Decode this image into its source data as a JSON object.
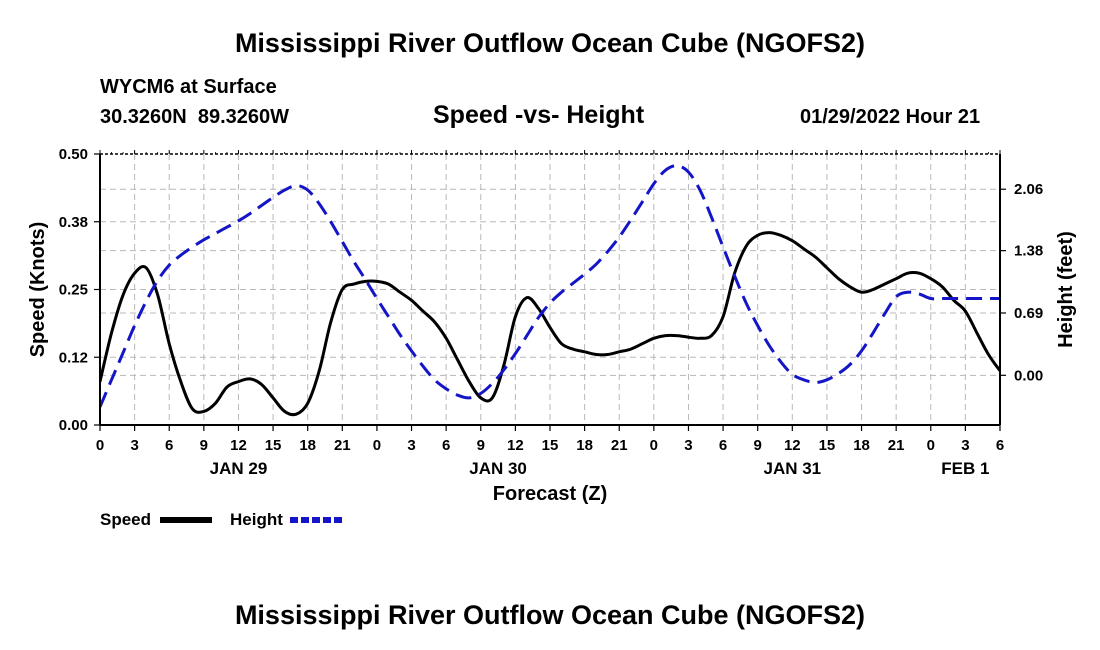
{
  "page": {
    "title": "Mississippi River Outflow Ocean Cube (NGOFS2)",
    "station_line": "WYCM6 at Surface",
    "coords_line": "30.3260N  89.3260W",
    "subtitle": "Speed -vs- Height",
    "datetime": "01/29/2022 Hour 21",
    "footer_title": "Mississippi River Outflow Ocean Cube (NGOFS2)"
  },
  "chart_data": {
    "type": "line",
    "title": "Speed -vs- Height",
    "xlabel": "Forecast (Z)",
    "ylabel": "Speed (Knots)",
    "y2label": "Height (feet)",
    "x_range": [
      0,
      78
    ],
    "ylim": [
      0,
      0.5
    ],
    "y2lim": [
      -0.55,
      2.45
    ],
    "grid": true,
    "x_tick_hours": [
      0,
      3,
      6,
      9,
      12,
      15,
      18,
      21,
      24,
      27,
      30,
      33,
      36,
      39,
      42,
      45,
      48,
      51,
      54,
      57,
      60,
      63,
      66,
      69,
      72,
      75,
      78
    ],
    "x_tick_labels": [
      "0",
      "3",
      "6",
      "9",
      "12",
      "15",
      "18",
      "21",
      "0",
      "3",
      "6",
      "9",
      "12",
      "15",
      "18",
      "21",
      "0",
      "3",
      "6",
      "9",
      "12",
      "15",
      "18",
      "21",
      "0",
      "3",
      "6"
    ],
    "date_labels": [
      {
        "label": "JAN 29",
        "hour": 12
      },
      {
        "label": "JAN 30",
        "hour": 34.5
      },
      {
        "label": "JAN 31",
        "hour": 60
      },
      {
        "label": "FEB 1",
        "hour": 75
      }
    ],
    "y_ticks": [
      "0.00",
      "0.12",
      "0.25",
      "0.38",
      "0.50"
    ],
    "y_tick_values": [
      0,
      0.125,
      0.25,
      0.375,
      0.5
    ],
    "y2_ticks": [
      "0.00",
      "0.69",
      "1.38",
      "2.06"
    ],
    "y2_tick_values": [
      0,
      0.69,
      1.38,
      2.06
    ],
    "legend": [
      {
        "name": "Speed",
        "color": "#000000",
        "dash": false
      },
      {
        "name": "Height",
        "color": "#1515c8",
        "dash": true
      }
    ],
    "series": [
      {
        "name": "Speed",
        "axis": "left",
        "color": "#000000",
        "x": [
          0,
          1,
          2,
          3,
          4,
          5,
          6,
          7,
          8,
          9,
          10,
          11,
          12,
          13,
          14,
          15,
          16,
          17,
          18,
          19,
          20,
          21,
          22,
          23,
          24,
          25,
          26,
          27,
          28,
          29,
          30,
          31,
          32,
          33,
          34,
          35,
          36,
          37,
          38,
          39,
          40,
          41,
          42,
          43,
          44,
          45,
          46,
          47,
          48,
          49,
          50,
          51,
          52,
          53,
          54,
          55,
          56,
          57,
          58,
          59,
          60,
          61,
          62,
          63,
          64,
          65,
          66,
          67,
          68,
          69,
          70,
          71,
          72,
          73,
          74,
          75,
          76,
          77,
          78
        ],
        "values": [
          0.08,
          0.17,
          0.24,
          0.28,
          0.29,
          0.24,
          0.15,
          0.08,
          0.03,
          0.025,
          0.04,
          0.07,
          0.08,
          0.085,
          0.075,
          0.05,
          0.025,
          0.02,
          0.04,
          0.1,
          0.19,
          0.25,
          0.26,
          0.265,
          0.265,
          0.26,
          0.245,
          0.23,
          0.21,
          0.19,
          0.16,
          0.12,
          0.08,
          0.05,
          0.05,
          0.11,
          0.2,
          0.235,
          0.215,
          0.18,
          0.15,
          0.14,
          0.135,
          0.13,
          0.13,
          0.135,
          0.14,
          0.15,
          0.16,
          0.165,
          0.165,
          0.162,
          0.16,
          0.165,
          0.2,
          0.28,
          0.33,
          0.35,
          0.355,
          0.35,
          0.34,
          0.325,
          0.31,
          0.29,
          0.27,
          0.255,
          0.245,
          0.25,
          0.26,
          0.27,
          0.28,
          0.28,
          0.27,
          0.255,
          0.23,
          0.21,
          0.17,
          0.13,
          0.1
        ]
      },
      {
        "name": "Height",
        "axis": "right",
        "color": "#1515c8",
        "x": [
          0,
          1,
          2,
          3,
          4,
          5,
          6,
          7,
          8,
          9,
          10,
          11,
          12,
          13,
          14,
          15,
          16,
          17,
          18,
          19,
          20,
          21,
          22,
          23,
          24,
          25,
          26,
          27,
          28,
          29,
          30,
          31,
          32,
          33,
          34,
          35,
          36,
          37,
          38,
          39,
          40,
          41,
          42,
          43,
          44,
          45,
          46,
          47,
          48,
          49,
          50,
          51,
          52,
          53,
          54,
          55,
          56,
          57,
          58,
          59,
          60,
          61,
          62,
          63,
          64,
          65,
          66,
          67,
          68,
          69,
          70,
          71,
          72,
          73,
          74,
          75,
          76,
          77,
          78
        ],
        "values": [
          -0.35,
          -0.05,
          0.25,
          0.55,
          0.82,
          1.05,
          1.22,
          1.33,
          1.42,
          1.5,
          1.57,
          1.64,
          1.71,
          1.79,
          1.88,
          1.97,
          2.05,
          2.1,
          2.05,
          1.9,
          1.7,
          1.48,
          1.26,
          1.06,
          0.85,
          0.65,
          0.45,
          0.27,
          0.1,
          -0.05,
          -0.15,
          -0.22,
          -0.25,
          -0.2,
          -0.09,
          0.06,
          0.24,
          0.44,
          0.64,
          0.8,
          0.92,
          1.02,
          1.12,
          1.23,
          1.37,
          1.53,
          1.72,
          1.92,
          2.12,
          2.27,
          2.32,
          2.25,
          2.05,
          1.75,
          1.42,
          1.1,
          0.8,
          0.55,
          0.33,
          0.15,
          0.01,
          -0.05,
          -0.08,
          -0.05,
          0.02,
          0.12,
          0.27,
          0.47,
          0.68,
          0.87,
          0.92,
          0.9,
          0.85,
          0.85,
          0.85,
          0.85,
          0.85,
          0.85,
          0.85
        ]
      }
    ]
  }
}
